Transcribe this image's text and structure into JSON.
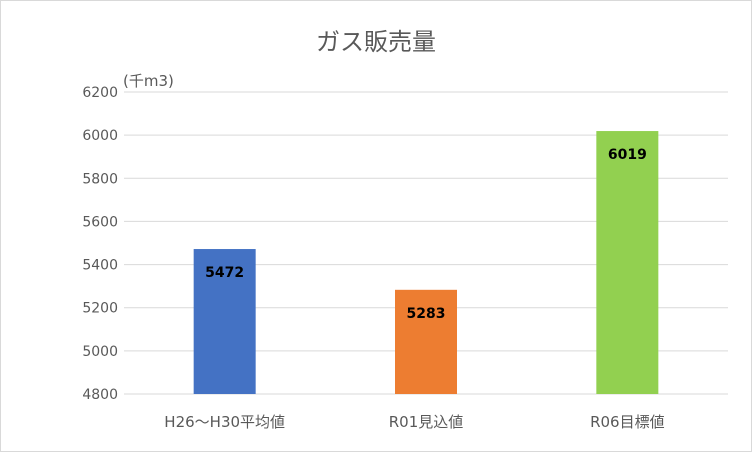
{
  "chart_data": {
    "type": "bar",
    "title": "ガス販売量",
    "unit_label": "(千m3)",
    "categories": [
      "H26～H30平均値",
      "R01見込値",
      "R06目標値"
    ],
    "values": [
      5472,
      5283,
      6019
    ],
    "data_labels": [
      "5472",
      "5283",
      "6019"
    ],
    "bar_colors": [
      "#4472C4",
      "#ED7D31",
      "#92D050"
    ],
    "ylim": [
      4800,
      6200
    ],
    "yticks": [
      4800,
      5000,
      5200,
      5400,
      5600,
      5800,
      6000,
      6200
    ],
    "ytick_labels": [
      "4800",
      "5000",
      "5200",
      "5400",
      "5600",
      "5800",
      "6000",
      "6200"
    ],
    "grid": true,
    "legend": "none",
    "title_color": "#595959",
    "tick_label_color": "#595959",
    "data_label_color": "#000000",
    "gridline_color": "#d9d9d9"
  }
}
